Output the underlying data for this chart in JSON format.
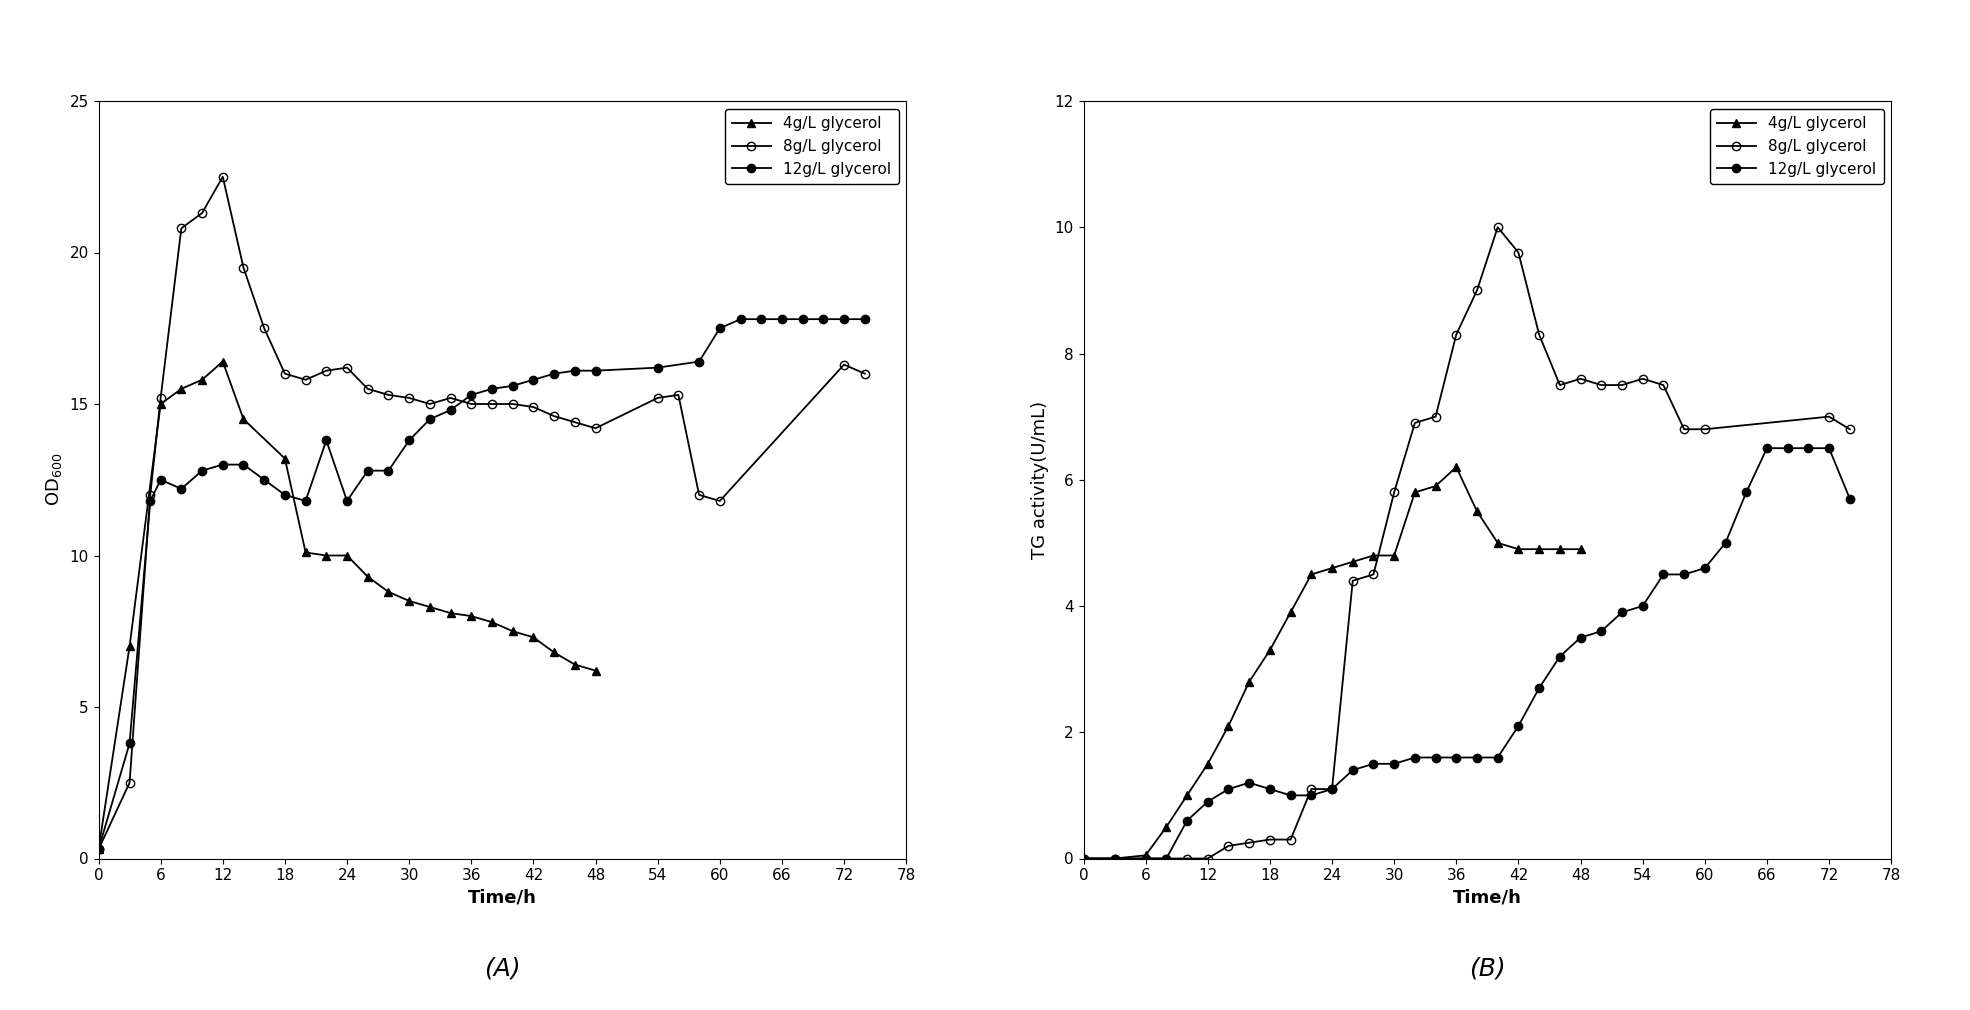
{
  "panel_A": {
    "title_label": "(A)",
    "ylabel": "OD$_{600}$",
    "xlabel": "Time/h",
    "xlim": [
      0,
      78
    ],
    "ylim": [
      0,
      25
    ],
    "xticks": [
      0,
      6,
      12,
      18,
      24,
      30,
      36,
      42,
      48,
      54,
      60,
      66,
      72,
      78
    ],
    "yticks": [
      0,
      5,
      10,
      15,
      20,
      25
    ],
    "series": [
      {
        "label": "4g/L glycerol",
        "marker": "^",
        "fillstyle": "full",
        "color": "black",
        "x": [
          0,
          3,
          6,
          8,
          10,
          12,
          14,
          18,
          20,
          22,
          24,
          26,
          28,
          30,
          32,
          34,
          36,
          38,
          40,
          42,
          44,
          46,
          48
        ],
        "y": [
          0.3,
          7.0,
          15.0,
          15.5,
          15.8,
          16.4,
          14.5,
          13.2,
          10.1,
          10.0,
          10.0,
          9.3,
          8.8,
          8.5,
          8.3,
          8.1,
          8.0,
          7.8,
          7.5,
          7.3,
          6.8,
          6.4,
          6.2
        ]
      },
      {
        "label": "8g/L glycerol",
        "marker": "o",
        "fillstyle": "none",
        "color": "black",
        "x": [
          0,
          3,
          5,
          6,
          8,
          10,
          12,
          14,
          16,
          18,
          20,
          22,
          24,
          26,
          28,
          30,
          32,
          34,
          36,
          38,
          40,
          42,
          44,
          46,
          48,
          54,
          56,
          58,
          60,
          72,
          74
        ],
        "y": [
          0.3,
          2.5,
          12.0,
          15.2,
          20.8,
          21.3,
          22.5,
          19.5,
          17.5,
          16.0,
          15.8,
          16.1,
          16.2,
          15.5,
          15.3,
          15.2,
          15.0,
          15.2,
          15.0,
          15.0,
          15.0,
          14.9,
          14.6,
          14.4,
          14.2,
          15.2,
          15.3,
          12.0,
          11.8,
          16.3,
          16.0
        ]
      },
      {
        "label": "12g/L glycerol",
        "marker": "o",
        "fillstyle": "full",
        "color": "black",
        "x": [
          0,
          3,
          5,
          6,
          8,
          10,
          12,
          14,
          16,
          18,
          20,
          22,
          24,
          26,
          28,
          30,
          32,
          34,
          36,
          38,
          40,
          42,
          44,
          46,
          48,
          54,
          58,
          60,
          62,
          64,
          66,
          68,
          70,
          72,
          74
        ],
        "y": [
          0.3,
          3.8,
          11.8,
          12.5,
          12.2,
          12.8,
          13.0,
          13.0,
          12.5,
          12.0,
          11.8,
          13.8,
          11.8,
          12.8,
          12.8,
          13.8,
          14.5,
          14.8,
          15.3,
          15.5,
          15.6,
          15.8,
          16.0,
          16.1,
          16.1,
          16.2,
          16.4,
          17.5,
          17.8,
          17.8,
          17.8,
          17.8,
          17.8,
          17.8,
          17.8
        ]
      }
    ]
  },
  "panel_B": {
    "title_label": "(B)",
    "ylabel": "TG activity(U/mL)",
    "xlabel": "Time/h",
    "xlim": [
      0,
      78
    ],
    "ylim": [
      0,
      12
    ],
    "xticks": [
      0,
      6,
      12,
      18,
      24,
      30,
      36,
      42,
      48,
      54,
      60,
      66,
      72,
      78
    ],
    "yticks": [
      0,
      2,
      4,
      6,
      8,
      10,
      12
    ],
    "series": [
      {
        "label": "4g/L glycerol",
        "marker": "^",
        "fillstyle": "full",
        "color": "black",
        "x": [
          0,
          3,
          6,
          8,
          10,
          12,
          14,
          16,
          18,
          20,
          22,
          24,
          26,
          28,
          30,
          32,
          34,
          36,
          38,
          40,
          42,
          44,
          46,
          48
        ],
        "y": [
          0.0,
          0.0,
          0.05,
          0.5,
          1.0,
          1.5,
          2.1,
          2.8,
          3.3,
          3.9,
          4.5,
          4.6,
          4.7,
          4.8,
          4.8,
          5.8,
          5.9,
          6.2,
          5.5,
          5.0,
          4.9,
          4.9,
          4.9,
          4.9
        ]
      },
      {
        "label": "8g/L glycerol",
        "marker": "o",
        "fillstyle": "none",
        "color": "black",
        "x": [
          0,
          3,
          6,
          8,
          10,
          12,
          14,
          16,
          18,
          20,
          22,
          24,
          26,
          28,
          30,
          32,
          34,
          36,
          38,
          40,
          42,
          44,
          46,
          48,
          50,
          52,
          54,
          56,
          58,
          60,
          72,
          74
        ],
        "y": [
          0.0,
          0.0,
          0.0,
          0.0,
          0.0,
          0.0,
          0.2,
          0.25,
          0.3,
          0.3,
          1.1,
          1.1,
          4.4,
          4.5,
          5.8,
          6.9,
          7.0,
          8.3,
          9.0,
          10.0,
          9.6,
          8.3,
          7.5,
          7.6,
          7.5,
          7.5,
          7.6,
          7.5,
          6.8,
          6.8,
          7.0,
          6.8
        ]
      },
      {
        "label": "12g/L glycerol",
        "marker": "o",
        "fillstyle": "full",
        "color": "black",
        "x": [
          0,
          3,
          6,
          8,
          10,
          12,
          14,
          16,
          18,
          20,
          22,
          24,
          26,
          28,
          30,
          32,
          34,
          36,
          38,
          40,
          42,
          44,
          46,
          48,
          50,
          52,
          54,
          56,
          58,
          60,
          62,
          64,
          66,
          68,
          70,
          72,
          74
        ],
        "y": [
          0.0,
          0.0,
          0.0,
          0.0,
          0.6,
          0.9,
          1.1,
          1.2,
          1.1,
          1.0,
          1.0,
          1.1,
          1.4,
          1.5,
          1.5,
          1.6,
          1.6,
          1.6,
          1.6,
          1.6,
          2.1,
          2.7,
          3.2,
          3.5,
          3.6,
          3.9,
          4.0,
          4.5,
          4.5,
          4.6,
          5.0,
          5.8,
          6.5,
          6.5,
          6.5,
          6.5,
          5.7
        ]
      }
    ]
  },
  "figure_bg": "#ffffff",
  "markersize": 6,
  "linewidth": 1.3,
  "legend_fontsize": 11,
  "tick_fontsize": 11,
  "label_fontsize": 13,
  "subplot_label_fontsize": 18
}
